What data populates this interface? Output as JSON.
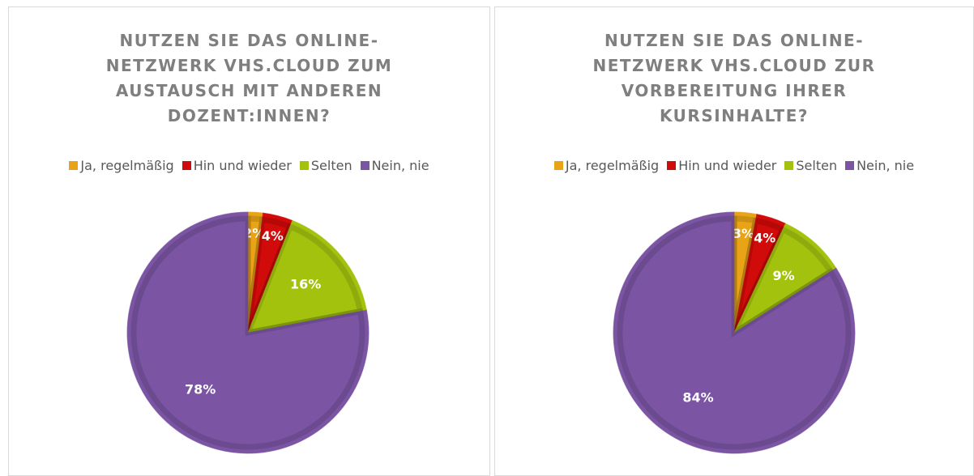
{
  "chart_data": [
    {
      "type": "pie",
      "title": "NUTZEN SIE DAS ONLINE-NETZWERK VHS.CLOUD ZUM AUSTAUSCH MIT ANDEREN DOZENT:INNEN?",
      "categories": [
        "Ja, regelmäßig",
        "Hin und wieder",
        "Selten",
        "Nein, nie"
      ],
      "values": [
        2,
        4,
        16,
        78
      ],
      "value_labels": [
        "2%",
        "4%",
        "16%",
        "78%"
      ],
      "colors": [
        "#e8a317",
        "#d10a0a",
        "#a3c20e",
        "#7b55a3"
      ],
      "legend": "top"
    },
    {
      "type": "pie",
      "title": "NUTZEN SIE DAS ONLINE-NETZWERK VHS.CLOUD ZUR VORBEREITUNG IHRER KURSINHALTE?",
      "categories": [
        "Ja, regelmäßig",
        "Hin und wieder",
        "Selten",
        "Nein, nie"
      ],
      "values": [
        3,
        4,
        9,
        84
      ],
      "value_labels": [
        "3%",
        "4%",
        "9%",
        "84%"
      ],
      "colors": [
        "#e8a317",
        "#d10a0a",
        "#a3c20e",
        "#7b55a3"
      ],
      "legend": "top"
    }
  ]
}
